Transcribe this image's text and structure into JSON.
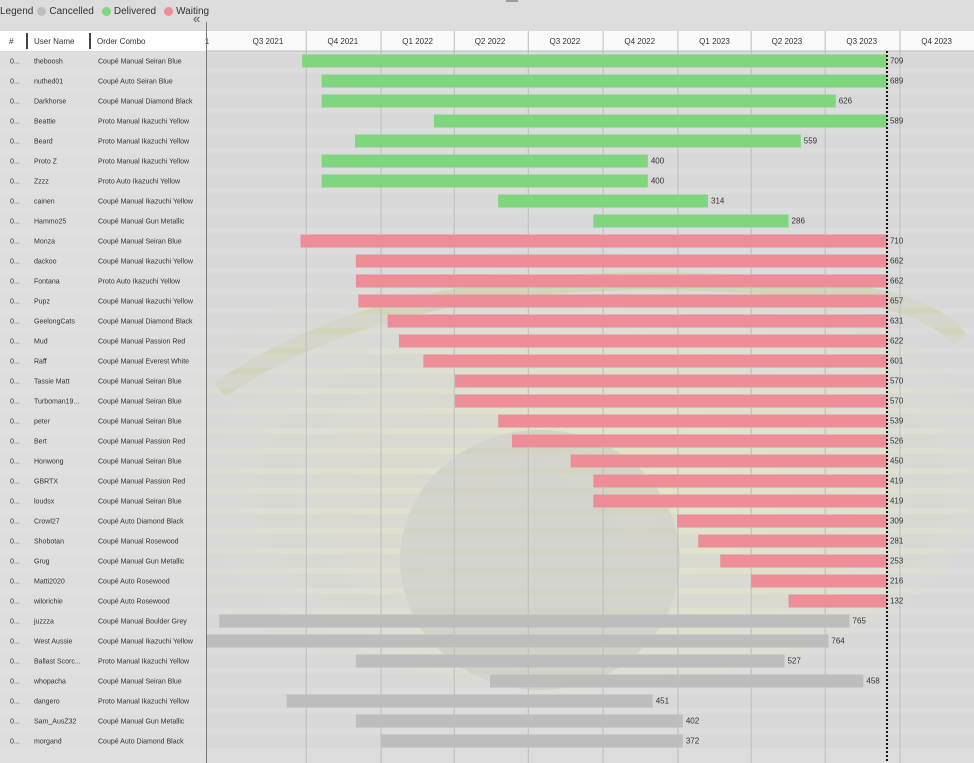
{
  "legend": {
    "title": "Legend",
    "items": [
      {
        "label": "Cancelled",
        "color": "#bdbdbd"
      },
      {
        "label": "Delivered",
        "color": "#7fd67f"
      },
      {
        "label": "Waiting",
        "color": "#ec8d97"
      }
    ]
  },
  "collapse_label": "«",
  "columns": {
    "id": "#",
    "user": "User Name",
    "combo": "Order Combo"
  },
  "chart_data": {
    "type": "bar",
    "orientation": "horizontal-gantt",
    "x_start": "2021-06-01",
    "x_end": "2023-12-31",
    "axis_ticks": [
      {
        "label": "1",
        "date": "2021-06-01"
      },
      {
        "label": "Q3 2021",
        "date": "2021-08-15"
      },
      {
        "label": "Q4 2021",
        "date": "2021-11-15"
      },
      {
        "label": "Q1 2022",
        "date": "2022-02-15"
      },
      {
        "label": "Q2 2022",
        "date": "2022-05-15"
      },
      {
        "label": "Q3 2022",
        "date": "2022-08-15"
      },
      {
        "label": "Q4 2022",
        "date": "2022-11-15"
      },
      {
        "label": "Q1 2023",
        "date": "2023-02-15"
      },
      {
        "label": "Q2 2023",
        "date": "2023-05-15"
      },
      {
        "label": "Q3 2023",
        "date": "2023-08-15"
      },
      {
        "label": "Q4 2023",
        "date": "2023-11-15"
      }
    ],
    "gridlines": [
      "2021-10-01",
      "2022-01-01",
      "2022-04-01",
      "2022-07-01",
      "2022-10-01",
      "2023-01-01",
      "2023-04-01",
      "2023-07-01",
      "2023-10-01"
    ],
    "today": "2023-09-15",
    "status_colors": {
      "Delivered": "#7fd67f",
      "Waiting": "#ec8d97",
      "Cancelled": "#bdbdbd"
    },
    "rows": [
      {
        "id": "0...",
        "user": "theboosh",
        "combo": "Coupé Manual Seiran Blue",
        "status": "Delivered",
        "start": "2021-09-26",
        "end": "2023-09-15",
        "value": 709
      },
      {
        "id": "0...",
        "user": "nuthed01",
        "combo": "Coupé Auto Seiran Blue",
        "status": "Delivered",
        "start": "2021-10-20",
        "end": "2023-09-15",
        "value": 689
      },
      {
        "id": "0...",
        "user": "Darkhorse",
        "combo": "Coupé Manual Diamond Black",
        "status": "Delivered",
        "start": "2021-10-20",
        "end": "2023-07-14",
        "value": 626
      },
      {
        "id": "0...",
        "user": "Beattie",
        "combo": "Proto Manual Ikazuchi Yellow",
        "status": "Delivered",
        "start": "2022-03-07",
        "end": "2023-09-15",
        "value": 589
      },
      {
        "id": "0...",
        "user": "Beard",
        "combo": "Proto Manual Ikazuchi Yellow",
        "status": "Delivered",
        "start": "2021-11-30",
        "end": "2023-06-01",
        "value": 559
      },
      {
        "id": "0...",
        "user": "Proto Z",
        "combo": "Proto Manual Ikazuchi Yellow",
        "status": "Delivered",
        "start": "2021-10-20",
        "end": "2022-11-25",
        "value": 400
      },
      {
        "id": "0...",
        "user": "Zzzz",
        "combo": "Proto Auto Ikazuchi Yellow",
        "status": "Delivered",
        "start": "2021-10-20",
        "end": "2022-11-25",
        "value": 400
      },
      {
        "id": "0...",
        "user": "cainen",
        "combo": "Coupé Manual Ikazuchi Yellow",
        "status": "Delivered",
        "start": "2022-05-25",
        "end": "2023-02-07",
        "value": 314
      },
      {
        "id": "0...",
        "user": "Hammo25",
        "combo": "Coupé Manual Gun Metallic",
        "status": "Delivered",
        "start": "2022-09-19",
        "end": "2023-05-17",
        "value": 286
      },
      {
        "id": "0...",
        "user": "Monza",
        "combo": "Coupé Manual Seiran Blue",
        "status": "Waiting",
        "start": "2021-09-24",
        "end": "2023-09-15",
        "value": 710
      },
      {
        "id": "0...",
        "user": "dackoo",
        "combo": "Coupé Manual Ikazuchi Yellow",
        "status": "Waiting",
        "start": "2021-12-01",
        "end": "2023-09-15",
        "value": 662
      },
      {
        "id": "0...",
        "user": "Fontana",
        "combo": "Proto Auto Ikazuchi Yellow",
        "status": "Waiting",
        "start": "2021-12-01",
        "end": "2023-09-15",
        "value": 662
      },
      {
        "id": "0...",
        "user": "Pupz",
        "combo": "Coupé Manual Ikazuchi Yellow",
        "status": "Waiting",
        "start": "2021-12-04",
        "end": "2023-09-15",
        "value": 657
      },
      {
        "id": "0...",
        "user": "GeelongCats",
        "combo": "Coupé Manual Diamond Black",
        "status": "Waiting",
        "start": "2022-01-09",
        "end": "2023-09-15",
        "value": 631
      },
      {
        "id": "0...",
        "user": "Mud",
        "combo": "Coupé Manual Passion Red",
        "status": "Waiting",
        "start": "2022-01-23",
        "end": "2023-09-15",
        "value": 622
      },
      {
        "id": "0...",
        "user": "Raff",
        "combo": "Coupé Manual Everest White",
        "status": "Waiting",
        "start": "2022-02-22",
        "end": "2023-09-15",
        "value": 601
      },
      {
        "id": "0...",
        "user": "Tassie Matt",
        "combo": "Coupé Manual Seiran Blue",
        "status": "Waiting",
        "start": "2022-04-02",
        "end": "2023-09-15",
        "value": 570
      },
      {
        "id": "0...",
        "user": "Turboman19...",
        "combo": "Coupé Manual Seiran Blue",
        "status": "Waiting",
        "start": "2022-04-02",
        "end": "2023-09-15",
        "value": 570
      },
      {
        "id": "0...",
        "user": "peter",
        "combo": "Coupé Manual Seiran Blue",
        "status": "Waiting",
        "start": "2022-05-25",
        "end": "2023-09-15",
        "value": 539
      },
      {
        "id": "0...",
        "user": "Bert",
        "combo": "Coupé Manual Passion Red",
        "status": "Waiting",
        "start": "2022-06-11",
        "end": "2023-09-15",
        "value": 526
      },
      {
        "id": "0...",
        "user": "Honwong",
        "combo": "Coupé Manual Seiran Blue",
        "status": "Waiting",
        "start": "2022-08-22",
        "end": "2023-09-15",
        "value": 450
      },
      {
        "id": "0...",
        "user": "GBRTX",
        "combo": "Coupé Manual Passion Red",
        "status": "Waiting",
        "start": "2022-09-19",
        "end": "2023-09-15",
        "value": 419
      },
      {
        "id": "0...",
        "user": "loudsx",
        "combo": "Coupé Manual Seiran Blue",
        "status": "Waiting",
        "start": "2022-09-19",
        "end": "2023-09-15",
        "value": 419
      },
      {
        "id": "0...",
        "user": "Crowl27",
        "combo": "Coupé Auto Diamond Black",
        "status": "Waiting",
        "start": "2022-12-31",
        "end": "2023-09-15",
        "value": 309
      },
      {
        "id": "0...",
        "user": "Shobotan",
        "combo": "Coupé Manual Rosewood",
        "status": "Waiting",
        "start": "2023-01-26",
        "end": "2023-09-15",
        "value": 281
      },
      {
        "id": "0...",
        "user": "Grug",
        "combo": "Coupé Manual Gun Metallic",
        "status": "Waiting",
        "start": "2023-02-22",
        "end": "2023-09-15",
        "value": 253
      },
      {
        "id": "0...",
        "user": "Matti2020",
        "combo": "Coupé Auto Rosewood",
        "status": "Waiting",
        "start": "2023-04-01",
        "end": "2023-09-15",
        "value": 216
      },
      {
        "id": "0...",
        "user": "wilorichie",
        "combo": "Coupé Auto Rosewood",
        "status": "Waiting",
        "start": "2023-05-17",
        "end": "2023-09-15",
        "value": 132
      },
      {
        "id": "0...",
        "user": "juzzza",
        "combo": "Coupé Manual Boulder Grey",
        "status": "Cancelled",
        "start": "2021-06-16",
        "end": "2023-07-31",
        "value": 765
      },
      {
        "id": "0...",
        "user": "West Aussie",
        "combo": "Coupé Manual Ikazuchi Yellow",
        "status": "Cancelled",
        "start": "2021-06-01",
        "end": "2023-07-05",
        "value": 764
      },
      {
        "id": "0...",
        "user": "Ballast Scorc...",
        "combo": "Proto Manual Ikazuchi Yellow",
        "status": "Cancelled",
        "start": "2021-12-01",
        "end": "2023-05-12",
        "value": 527
      },
      {
        "id": "0...",
        "user": "whopacha",
        "combo": "Coupé Manual Seiran Blue",
        "status": "Cancelled",
        "start": "2022-05-15",
        "end": "2023-08-17",
        "value": 458
      },
      {
        "id": "0...",
        "user": "dangero",
        "combo": "Proto Manual Ikazuchi Yellow",
        "status": "Cancelled",
        "start": "2021-09-07",
        "end": "2022-12-01",
        "value": 451
      },
      {
        "id": "0...",
        "user": "Sam_AusZ32",
        "combo": "Coupé Manual Gun Metallic",
        "status": "Cancelled",
        "start": "2021-12-01",
        "end": "2023-01-07",
        "value": 402
      },
      {
        "id": "0...",
        "user": "morgand",
        "combo": "Coupé Auto Diamond Black",
        "status": "Cancelled",
        "start": "2022-01-01",
        "end": "2023-01-07",
        "value": 372
      }
    ]
  }
}
